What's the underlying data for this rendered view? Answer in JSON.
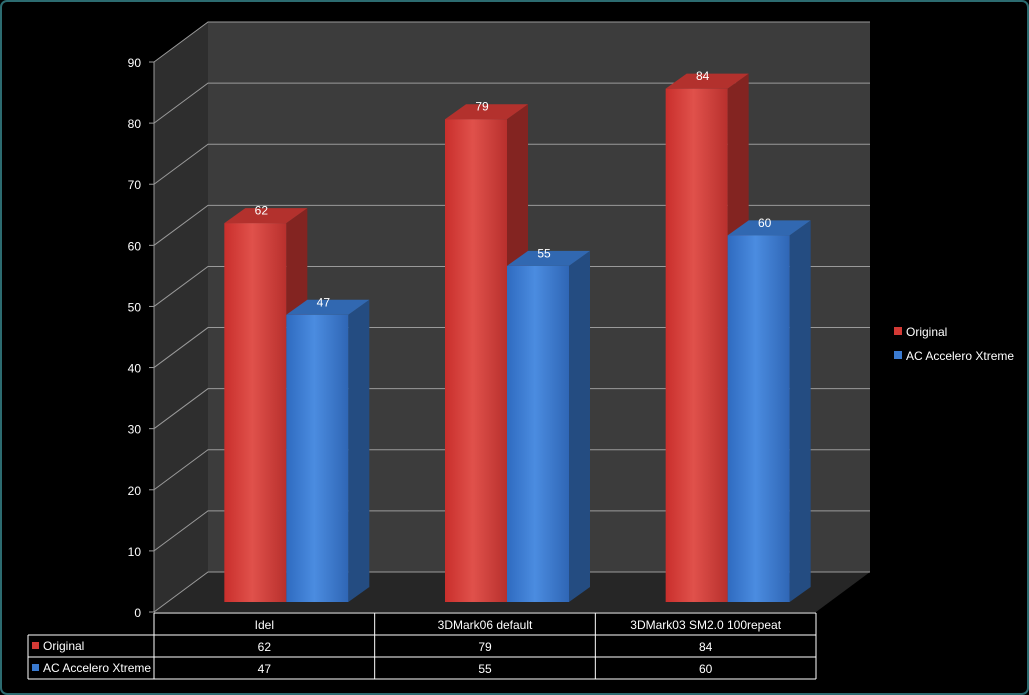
{
  "chart_data": {
    "type": "bar",
    "categories": [
      "Idel",
      "3DMark06 default",
      "3DMark03 SM2.0 100repeat"
    ],
    "series": [
      {
        "name": "Original",
        "values": [
          62,
          79,
          84
        ],
        "color": "#d33a35"
      },
      {
        "name": "AC Accelero Xtreme",
        "values": [
          47,
          55,
          60
        ],
        "color": "#3a7ad0"
      }
    ],
    "y_ticks": [
      "0",
      "10",
      "20",
      "30",
      "40",
      "50",
      "60",
      "70",
      "80",
      "90"
    ],
    "ylim": [
      0,
      90
    ],
    "grid": true,
    "legend_position": "right",
    "data_table": true,
    "colors": {
      "background": "#000000",
      "back_wall": "#3c3c3c",
      "side_wall": "#2e2e2e",
      "floor": "#262626",
      "grid": "#9a9a9a",
      "text": "#ffffff"
    }
  }
}
